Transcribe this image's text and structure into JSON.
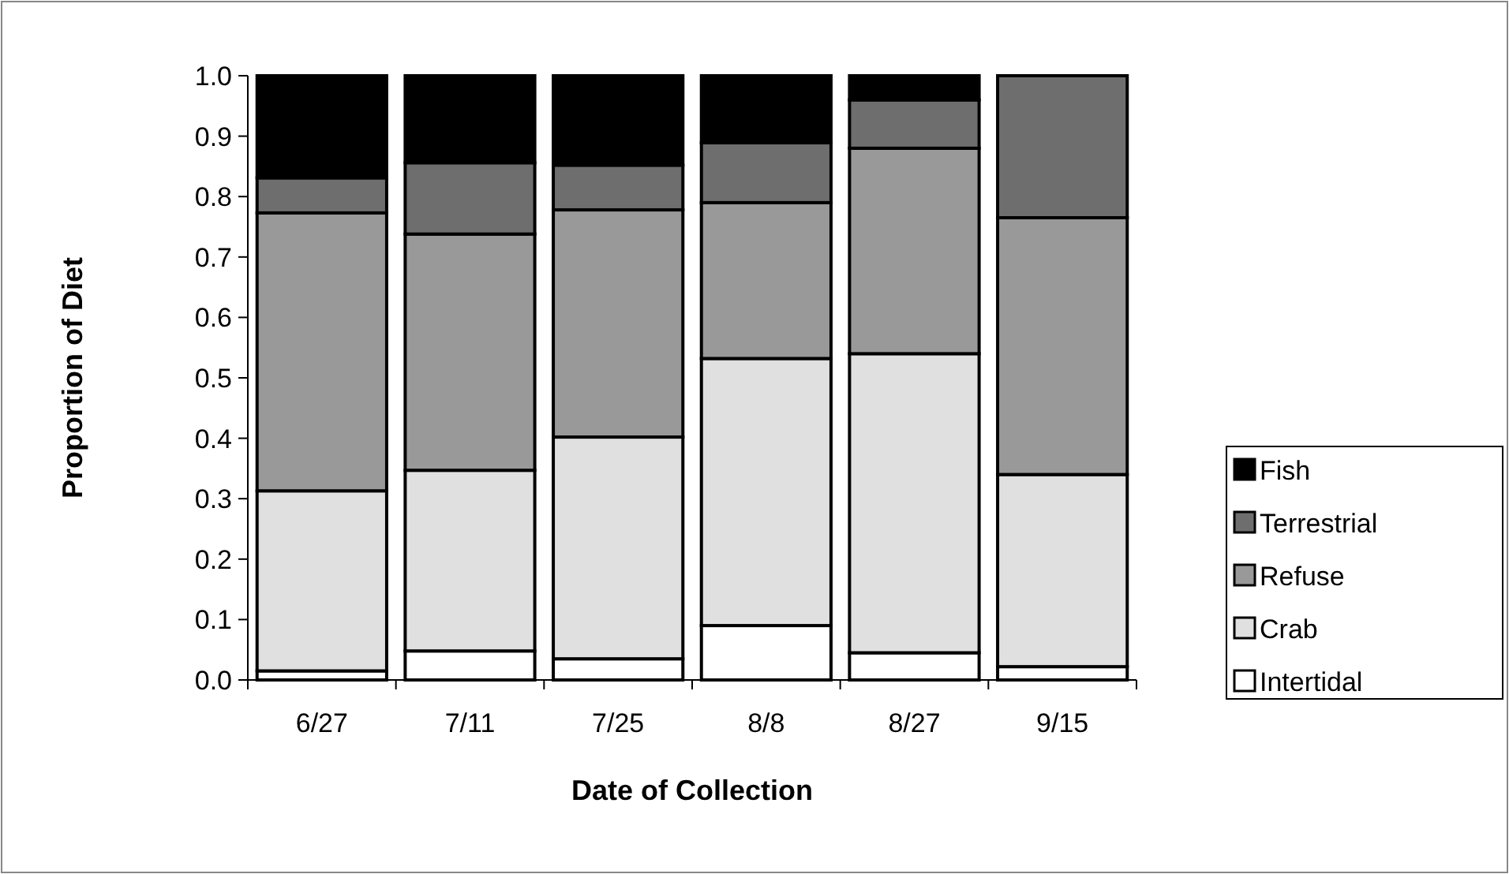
{
  "chart_data": {
    "type": "bar",
    "stacked": true,
    "xlabel": "Date of Collection",
    "ylabel": "Proportion of Diet",
    "categories": [
      "6/27",
      "7/11",
      "7/25",
      "8/8",
      "8/27",
      "9/15"
    ],
    "series": [
      {
        "name": "Intertidal",
        "color": "#ffffff",
        "values": [
          0.015,
          0.048,
          0.035,
          0.09,
          0.045,
          0.022
        ]
      },
      {
        "name": "Crab",
        "color": "#e0e0e0",
        "values": [
          0.298,
          0.299,
          0.367,
          0.442,
          0.495,
          0.318
        ]
      },
      {
        "name": "Refuse",
        "color": "#999999",
        "values": [
          0.46,
          0.391,
          0.376,
          0.258,
          0.34,
          0.425
        ]
      },
      {
        "name": "Terrestrial",
        "color": "#6e6e6e",
        "values": [
          0.058,
          0.118,
          0.074,
          0.099,
          0.08,
          0.235
        ]
      },
      {
        "name": "Fish",
        "color": "#000000",
        "values": [
          0.169,
          0.144,
          0.148,
          0.111,
          0.04,
          0
        ]
      }
    ],
    "ylim": [
      0,
      1
    ],
    "yticks": [
      {
        "value": 0,
        "label": "0.0"
      },
      {
        "value": 0.1,
        "label": "0.1"
      },
      {
        "value": 0.2,
        "label": "0.2"
      },
      {
        "value": 0.3,
        "label": "0.3"
      },
      {
        "value": 0.4,
        "label": "0.4"
      },
      {
        "value": 0.5,
        "label": "0.5"
      },
      {
        "value": 0.6,
        "label": "0.6"
      },
      {
        "value": 0.7,
        "label": "0.7"
      },
      {
        "value": 0.8,
        "label": "0.8"
      },
      {
        "value": 0.9,
        "label": "0.9"
      },
      {
        "value": 1,
        "label": "1.0"
      }
    ],
    "legend": "right",
    "grid": false
  }
}
